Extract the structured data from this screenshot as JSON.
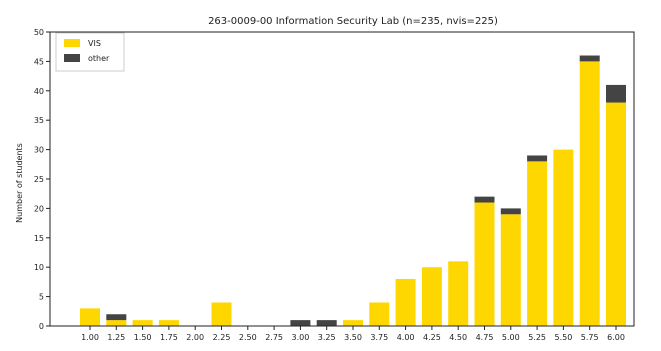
{
  "chart_data": {
    "type": "bar",
    "stacked": true,
    "title": "263-0009-00 Information Security Lab (n=235, nvis=225)",
    "xlabel": "",
    "ylabel": "Number of students",
    "categories": [
      "1.00",
      "1.25",
      "1.50",
      "1.75",
      "2.00",
      "2.25",
      "2.50",
      "2.75",
      "3.00",
      "3.25",
      "3.50",
      "3.75",
      "4.00",
      "4.25",
      "4.50",
      "4.75",
      "5.00",
      "5.25",
      "5.50",
      "5.75",
      "6.00"
    ],
    "series": [
      {
        "name": "VIS",
        "color": "#FFD700",
        "values": [
          3,
          1,
          1,
          1,
          0,
          4,
          0,
          0,
          0,
          0,
          1,
          4,
          8,
          10,
          11,
          21,
          19,
          28,
          30,
          45,
          38
        ]
      },
      {
        "name": "other",
        "color": "#444444",
        "values": [
          0,
          1,
          0,
          0,
          0,
          0,
          0,
          0,
          1,
          1,
          0,
          0,
          0,
          0,
          0,
          1,
          1,
          1,
          0,
          1,
          3
        ]
      }
    ],
    "ylim": [
      0,
      50
    ],
    "yticks": [
      0,
      5,
      10,
      15,
      20,
      25,
      30,
      35,
      40,
      45,
      50
    ],
    "grid": false,
    "legend": "top-left"
  }
}
